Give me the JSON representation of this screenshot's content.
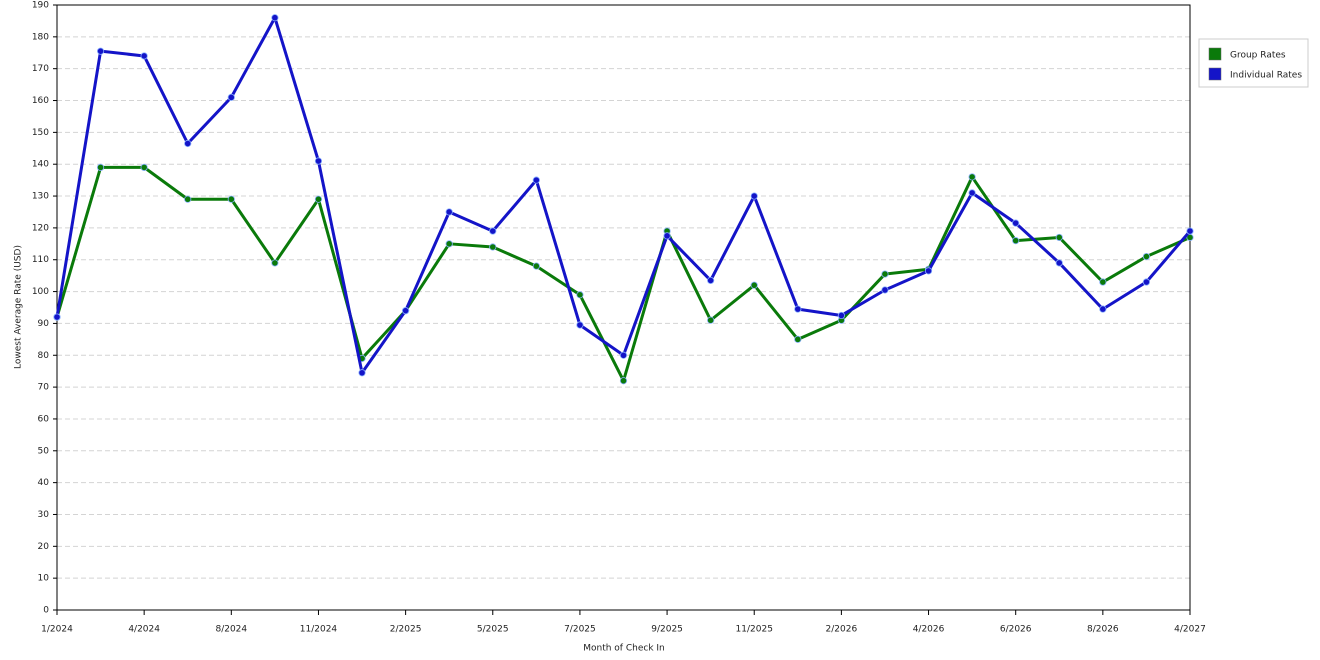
{
  "chart_data": {
    "type": "line",
    "x_label": "Month of Check In",
    "y_label": "Lowest Average Rate (USD)",
    "categories": [
      "1/2024",
      null,
      "4/2024",
      null,
      "8/2024",
      null,
      "11/2024",
      null,
      "2/2025",
      null,
      "5/2025",
      null,
      "7/2025",
      null,
      "9/2025",
      null,
      "11/2025",
      null,
      "2/2026",
      null,
      "4/2026",
      null,
      "6/2026",
      null,
      "8/2026",
      null,
      "4/2027"
    ],
    "series": [
      {
        "name": "Group Rates",
        "color": "#0a7a0a",
        "values": [
          92,
          139,
          139,
          129,
          129,
          109,
          129,
          79,
          94,
          115,
          114,
          108,
          99,
          72,
          119,
          91,
          102,
          85,
          91,
          105.5,
          107,
          136,
          116,
          117,
          103,
          111,
          117
        ]
      },
      {
        "name": "Individual Rates",
        "color": "#1414c8",
        "values": [
          92,
          175.5,
          174,
          146.5,
          161,
          186,
          141,
          74.5,
          94,
          125,
          119,
          135,
          89.5,
          80,
          117.5,
          103.5,
          130,
          94.5,
          92.5,
          100.5,
          106.5,
          131,
          121.5,
          109,
          94.5,
          103,
          119
        ]
      }
    ],
    "ylim": [
      0,
      190
    ],
    "yticks": [
      0,
      10,
      20,
      30,
      40,
      50,
      60,
      70,
      80,
      90,
      100,
      110,
      120,
      130,
      140,
      150,
      160,
      170,
      180,
      190
    ],
    "grid": true,
    "legend": "right"
  }
}
